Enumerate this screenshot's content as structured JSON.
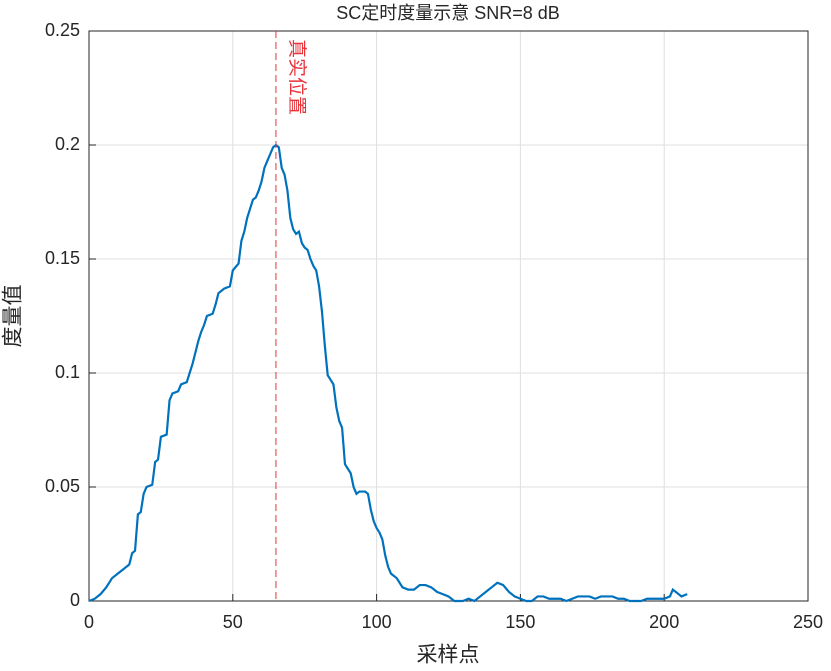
{
  "chart_data": {
    "type": "line",
    "title": "SC定时度量示意  SNR=8 dB",
    "xlabel": "采样点",
    "ylabel": "度量值",
    "annotation": {
      "text": "真实位置",
      "x": 65,
      "color": "#e8333a"
    },
    "x": [
      0,
      2,
      4,
      6,
      8,
      10,
      12,
      14,
      15,
      16,
      17,
      18,
      19,
      20,
      22,
      23,
      24,
      25,
      27,
      28,
      29,
      31,
      32,
      34,
      36,
      37,
      38,
      39,
      40,
      41,
      43,
      44,
      45,
      47,
      49,
      50,
      52,
      53,
      54,
      55,
      56,
      57,
      58,
      59,
      60,
      61,
      62,
      63,
      64,
      65,
      66,
      67,
      68,
      69,
      70,
      71,
      72,
      73,
      74,
      75,
      76,
      77,
      78,
      79,
      80,
      81,
      82,
      83,
      84,
      85,
      86,
      87,
      88,
      89,
      90,
      91,
      92,
      93,
      94,
      96,
      97,
      98,
      99,
      100,
      101,
      102,
      103,
      104,
      105,
      106,
      107,
      108,
      109,
      111,
      113,
      115,
      117,
      119,
      121,
      123,
      125,
      127,
      130,
      132,
      134,
      136,
      138,
      140,
      142,
      144,
      146,
      148,
      150,
      152,
      154,
      156,
      158,
      160,
      162,
      164,
      166,
      168,
      170,
      172,
      174,
      176,
      178,
      180,
      182,
      184,
      186,
      188,
      190,
      192,
      194,
      196,
      198,
      200,
      202,
      203,
      204,
      205,
      206,
      208
    ],
    "series": [
      {
        "name": "metric",
        "color": "#0072bd",
        "values": [
          0,
          0.001,
          0.003,
          0.006,
          0.01,
          0.012,
          0.014,
          0.016,
          0.021,
          0.022,
          0.038,
          0.039,
          0.047,
          0.05,
          0.051,
          0.061,
          0.062,
          0.072,
          0.073,
          0.088,
          0.091,
          0.092,
          0.095,
          0.096,
          0.104,
          0.109,
          0.114,
          0.118,
          0.121,
          0.125,
          0.126,
          0.13,
          0.135,
          0.137,
          0.138,
          0.145,
          0.148,
          0.158,
          0.162,
          0.168,
          0.172,
          0.176,
          0.177,
          0.18,
          0.184,
          0.19,
          0.193,
          0.196,
          0.199,
          0.2,
          0.199,
          0.19,
          0.187,
          0.18,
          0.168,
          0.163,
          0.161,
          0.162,
          0.157,
          0.155,
          0.154,
          0.15,
          0.147,
          0.145,
          0.138,
          0.127,
          0.112,
          0.099,
          0.097,
          0.095,
          0.085,
          0.079,
          0.076,
          0.06,
          0.058,
          0.056,
          0.05,
          0.047,
          0.048,
          0.048,
          0.047,
          0.04,
          0.035,
          0.032,
          0.03,
          0.027,
          0.02,
          0.015,
          0.012,
          0.011,
          0.01,
          0.008,
          0.006,
          0.005,
          0.005,
          0.007,
          0.007,
          0.006,
          0.004,
          0.003,
          0.002,
          0,
          0,
          0.001,
          0,
          0.002,
          0.004,
          0.006,
          0.008,
          0.007,
          0.004,
          0.002,
          0.001,
          0,
          0,
          0.002,
          0.002,
          0.001,
          0.001,
          0.001,
          0,
          0.001,
          0.002,
          0.002,
          0.002,
          0.001,
          0.002,
          0.002,
          0.002,
          0.001,
          0.001,
          0,
          0,
          0,
          0.001,
          0.001,
          0.001,
          0.001,
          0.002,
          0.005,
          0.004,
          0.003,
          0.002,
          0.003
        ]
      }
    ],
    "xlim": [
      0,
      250
    ],
    "xticks": [
      0,
      50,
      100,
      150,
      200,
      250
    ],
    "ylim": [
      0,
      0.25
    ],
    "yticks": [
      0,
      0.05,
      0.1,
      0.15,
      0.2,
      0.25
    ],
    "grid": true
  }
}
